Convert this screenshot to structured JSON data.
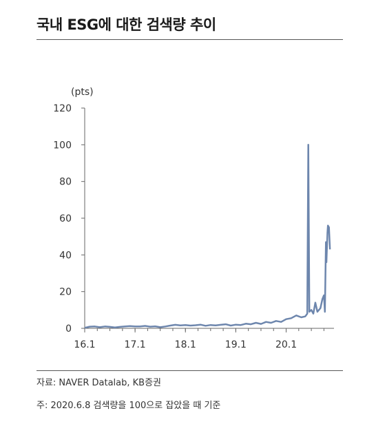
{
  "header": {
    "title": "국내 ESG에 대한 검색량 추이"
  },
  "footer": {
    "source": "자료: NAVER Datalab, KB증권",
    "note": "주: 2020.6.8 검색량을 100으로 잡았을 때 기준"
  },
  "chart_data": {
    "type": "line",
    "unit_label": "(pts)",
    "ylim": [
      0,
      120
    ],
    "yticks": [
      "120",
      "100",
      "80",
      "60",
      "40",
      "20",
      "0"
    ],
    "xlim": [
      2016.0,
      2020.95
    ],
    "xticks": [
      {
        "label": "16.1",
        "value": 2016.0
      },
      {
        "label": "17.1",
        "value": 2017.0
      },
      {
        "label": "18.1",
        "value": 2018.0
      },
      {
        "label": "19.1",
        "value": 2019.0
      },
      {
        "label": "20.1",
        "value": 2020.0
      }
    ],
    "line_color": "#6d86ad",
    "grid": false,
    "series": [
      {
        "points": [
          [
            2016.0,
            0.3
          ],
          [
            2016.1,
            0.9
          ],
          [
            2016.2,
            1.0
          ],
          [
            2016.3,
            0.6
          ],
          [
            2016.4,
            1.0
          ],
          [
            2016.5,
            0.8
          ],
          [
            2016.6,
            0.5
          ],
          [
            2016.7,
            0.8
          ],
          [
            2016.8,
            1.0
          ],
          [
            2016.9,
            1.2
          ],
          [
            2017.0,
            1.0
          ],
          [
            2017.1,
            1.0
          ],
          [
            2017.2,
            1.3
          ],
          [
            2017.3,
            0.9
          ],
          [
            2017.4,
            1.1
          ],
          [
            2017.5,
            0.6
          ],
          [
            2017.6,
            1.0
          ],
          [
            2017.7,
            1.5
          ],
          [
            2017.8,
            1.9
          ],
          [
            2017.9,
            1.6
          ],
          [
            2018.0,
            1.8
          ],
          [
            2018.1,
            1.5
          ],
          [
            2018.2,
            1.7
          ],
          [
            2018.3,
            2.0
          ],
          [
            2018.4,
            1.4
          ],
          [
            2018.5,
            1.8
          ],
          [
            2018.6,
            1.6
          ],
          [
            2018.7,
            1.9
          ],
          [
            2018.8,
            2.2
          ],
          [
            2018.9,
            1.5
          ],
          [
            2019.0,
            2.0
          ],
          [
            2019.1,
            1.8
          ],
          [
            2019.2,
            2.5
          ],
          [
            2019.3,
            2.2
          ],
          [
            2019.4,
            3.0
          ],
          [
            2019.5,
            2.4
          ],
          [
            2019.6,
            3.5
          ],
          [
            2019.7,
            3.0
          ],
          [
            2019.8,
            4.0
          ],
          [
            2019.9,
            3.5
          ],
          [
            2020.0,
            5.0
          ],
          [
            2020.1,
            5.5
          ],
          [
            2020.2,
            7.0
          ],
          [
            2020.3,
            6.0
          ],
          [
            2020.38,
            6.5
          ],
          [
            2020.42,
            8.0
          ],
          [
            2020.44,
            100
          ],
          [
            2020.46,
            9.0
          ],
          [
            2020.5,
            10.0
          ],
          [
            2020.54,
            8.0
          ],
          [
            2020.58,
            14.0
          ],
          [
            2020.62,
            9.0
          ],
          [
            2020.68,
            11.0
          ],
          [
            2020.72,
            16.0
          ],
          [
            2020.75,
            18.0
          ],
          [
            2020.77,
            9.0
          ],
          [
            2020.79,
            47.0
          ],
          [
            2020.8,
            36.0
          ],
          [
            2020.82,
            52.0
          ],
          [
            2020.83,
            56.0
          ],
          [
            2020.85,
            55.0
          ],
          [
            2020.87,
            43.0
          ]
        ]
      }
    ]
  }
}
